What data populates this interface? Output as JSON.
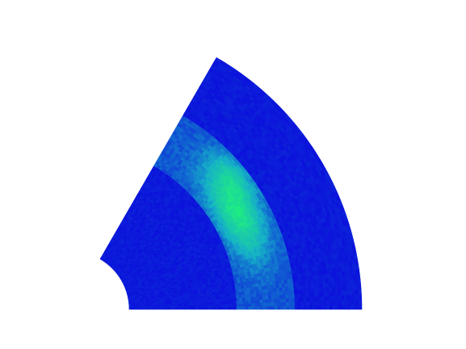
{
  "chart_data": {
    "type": "heatmap",
    "subtype": "polar-sector",
    "title": "",
    "xlabel": "",
    "ylabel": "",
    "axes_visible": false,
    "grid": false,
    "legend": "none",
    "r_range": [
      1,
      5
    ],
    "theta_range_deg": [
      0,
      60
    ],
    "colormap": [
      "#0b0bdc",
      "#16b0c8",
      "#20f07e"
    ],
    "background_value": 0.02,
    "ring": {
      "r_inner": 2.85,
      "r_outer": 3.85,
      "base_value": 0.22,
      "peak_value": 0.9,
      "peak_theta_deg": 30,
      "peak_r": 3.3
    }
  }
}
